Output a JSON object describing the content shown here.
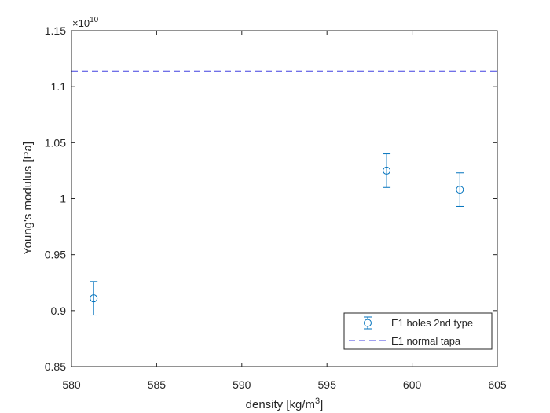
{
  "chart_data": {
    "type": "scatter",
    "xlabel": "density [kg/m",
    "xlabel_sup": "3",
    "xlabel_tail": "]",
    "ylabel": "Young's modulus [Pa]",
    "xlim": [
      580,
      605
    ],
    "ylim": [
      0.85,
      1.15
    ],
    "y_exponent_label": "×10",
    "y_exponent": "10",
    "grid": false,
    "legend_position": "bottom-right",
    "x_ticks": [
      580,
      585,
      590,
      595,
      600,
      605
    ],
    "x_tick_labels": [
      "580",
      "585",
      "590",
      "595",
      "600",
      "605"
    ],
    "y_ticks": [
      0.85,
      0.9,
      0.95,
      1.0,
      1.05,
      1.1,
      1.15
    ],
    "y_tick_labels": [
      "0.85",
      "0.9",
      "0.95",
      "1",
      "1.05",
      "1.1",
      "1.15"
    ],
    "series": [
      {
        "name": "E1 holes 2nd type",
        "style": "errorbar-circle",
        "color": "#0072BD",
        "x": [
          581.3,
          598.5,
          602.8
        ],
        "y": [
          0.911,
          1.025,
          1.008
        ],
        "err": [
          0.015,
          0.015,
          0.015
        ]
      },
      {
        "name": "E1 normal tapa",
        "style": "dashed-line",
        "color": "#4040E0",
        "y": 1.114
      }
    ]
  }
}
